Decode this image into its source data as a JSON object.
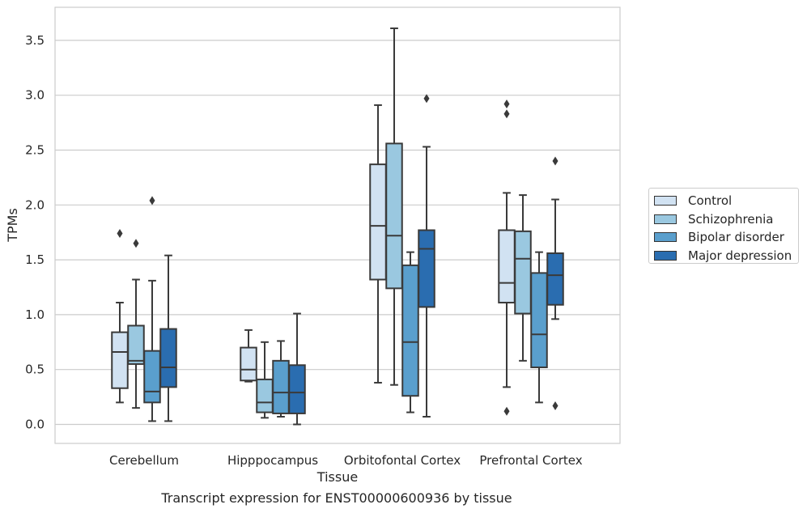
{
  "chart_data": {
    "type": "box",
    "xlabel": "Tissue",
    "ylabel": "TPMs",
    "ylim": [
      -0.17,
      3.77
    ],
    "yticks": [
      "0.0",
      "0.5",
      "1.0",
      "1.5",
      "2.0",
      "2.5",
      "3.0",
      "3.5"
    ],
    "grid": "horizontal",
    "legend_position": "right",
    "categories": [
      "Cerebellum",
      "Hipppocampus",
      "Orbitofontal Cortex",
      "Prefrontal Cortex"
    ],
    "series": [
      {
        "name": "Control",
        "color": "#d1e2f2",
        "boxes": [
          {
            "whislo": 0.2,
            "q1": 0.33,
            "med": 0.66,
            "q3": 0.84,
            "whishi": 1.11,
            "fliers": [
              1.74
            ]
          },
          {
            "whislo": 0.39,
            "q1": 0.4,
            "med": 0.5,
            "q3": 0.7,
            "whishi": 0.86,
            "fliers": []
          },
          {
            "whislo": 0.38,
            "q1": 1.32,
            "med": 1.81,
            "q3": 2.37,
            "whishi": 2.91,
            "fliers": []
          },
          {
            "whislo": 0.34,
            "q1": 1.11,
            "med": 1.29,
            "q3": 1.77,
            "whishi": 2.11,
            "fliers": [
              2.92,
              2.83,
              0.12
            ]
          }
        ]
      },
      {
        "name": "Schizophrenia",
        "color": "#9ac8e0",
        "boxes": [
          {
            "whislo": 0.15,
            "q1": 0.55,
            "med": 0.58,
            "q3": 0.9,
            "whishi": 1.32,
            "fliers": [
              1.65
            ]
          },
          {
            "whislo": 0.06,
            "q1": 0.11,
            "med": 0.2,
            "q3": 0.41,
            "whishi": 0.75,
            "fliers": []
          },
          {
            "whislo": 0.36,
            "q1": 1.24,
            "med": 1.72,
            "q3": 2.56,
            "whishi": 3.61,
            "fliers": []
          },
          {
            "whislo": 0.58,
            "q1": 1.01,
            "med": 1.51,
            "q3": 1.76,
            "whishi": 2.09,
            "fliers": []
          }
        ]
      },
      {
        "name": "Bipolar disorder",
        "color": "#5a9fcd",
        "boxes": [
          {
            "whislo": 0.03,
            "q1": 0.2,
            "med": 0.3,
            "q3": 0.67,
            "whishi": 1.31,
            "fliers": [
              2.04
            ]
          },
          {
            "whislo": 0.07,
            "q1": 0.1,
            "med": 0.29,
            "q3": 0.58,
            "whishi": 0.76,
            "fliers": []
          },
          {
            "whislo": 0.11,
            "q1": 0.26,
            "med": 0.75,
            "q3": 1.45,
            "whishi": 1.57,
            "fliers": []
          },
          {
            "whislo": 0.2,
            "q1": 0.52,
            "med": 0.82,
            "q3": 1.38,
            "whishi": 1.57,
            "fliers": []
          }
        ]
      },
      {
        "name": "Major depression",
        "color": "#2a6db0",
        "boxes": [
          {
            "whislo": 0.03,
            "q1": 0.34,
            "med": 0.52,
            "q3": 0.87,
            "whishi": 1.54,
            "fliers": []
          },
          {
            "whislo": 0.0,
            "q1": 0.1,
            "med": 0.29,
            "q3": 0.54,
            "whishi": 1.01,
            "fliers": []
          },
          {
            "whislo": 0.07,
            "q1": 1.07,
            "med": 1.6,
            "q3": 1.77,
            "whishi": 2.53,
            "fliers": [
              2.97
            ]
          },
          {
            "whislo": 0.96,
            "q1": 1.09,
            "med": 1.36,
            "q3": 1.56,
            "whishi": 2.05,
            "fliers": [
              2.4,
              0.17
            ]
          }
        ]
      }
    ]
  },
  "caption": "Transcript expression for ENST00000600936 by tissue"
}
